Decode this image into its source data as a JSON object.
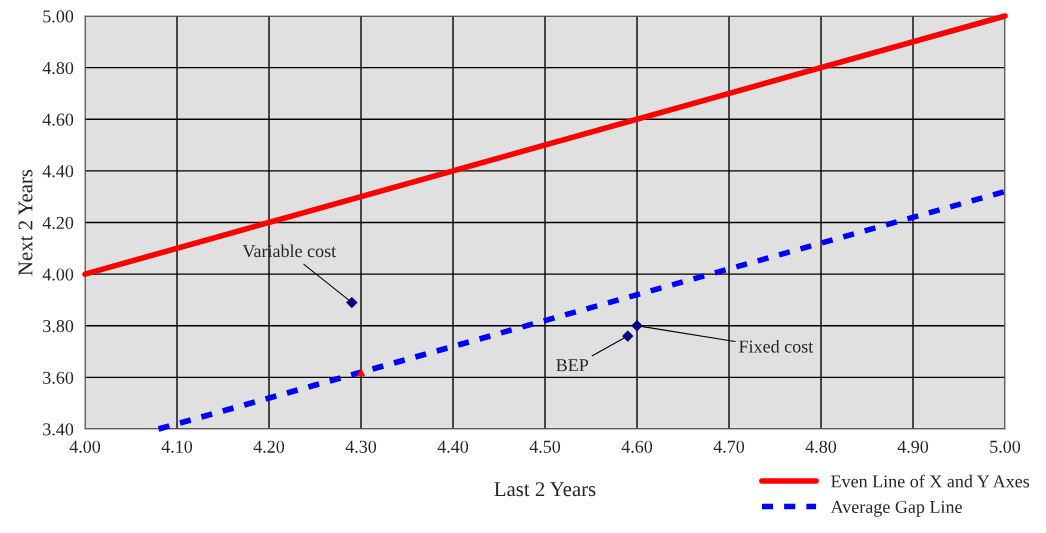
{
  "chart_data": {
    "type": "line",
    "xlabel": "Last 2 Years",
    "ylabel": "Next 2 Years",
    "xlim": [
      4.0,
      5.0
    ],
    "ylim": [
      3.4,
      5.0
    ],
    "xticks": [
      {
        "value": 4.0,
        "label": "4.00"
      },
      {
        "value": 4.1,
        "label": "4.10"
      },
      {
        "value": 4.2,
        "label": "4.20"
      },
      {
        "value": 4.3,
        "label": "4.30"
      },
      {
        "value": 4.4,
        "label": "4.40"
      },
      {
        "value": 4.5,
        "label": "4.50"
      },
      {
        "value": 4.6,
        "label": "4.60"
      },
      {
        "value": 4.7,
        "label": "4.70"
      },
      {
        "value": 4.8,
        "label": "4.80"
      },
      {
        "value": 4.9,
        "label": "4.90"
      },
      {
        "value": 5.0,
        "label": "5.00"
      }
    ],
    "yticks": [
      {
        "value": 3.4,
        "label": "3.40"
      },
      {
        "value": 3.6,
        "label": "3.60"
      },
      {
        "value": 3.8,
        "label": "3.80"
      },
      {
        "value": 4.0,
        "label": "4.00"
      },
      {
        "value": 4.2,
        "label": "4.20"
      },
      {
        "value": 4.4,
        "label": "4.40"
      },
      {
        "value": 4.6,
        "label": "4.60"
      },
      {
        "value": 4.8,
        "label": "4.80"
      },
      {
        "value": 5.0,
        "label": "5.00"
      }
    ],
    "grid": true,
    "legend": "bottom right",
    "series": [
      {
        "name": "Even Line of X and Y Axes",
        "color": "#ff0000",
        "line_style": "solid",
        "marker": "none",
        "x": [
          4.0,
          5.0
        ],
        "values": [
          4.0,
          5.0
        ]
      },
      {
        "name": "Average Gap Line",
        "color": "#0000ff",
        "line_style": "dashed",
        "marker": "none",
        "x": [
          4.08,
          5.0
        ],
        "values": [
          3.4,
          4.32
        ]
      },
      {
        "type": "scatter",
        "color": "#000080",
        "marker": "diamond",
        "x": [
          4.29,
          4.59,
          4.6
        ],
        "values": [
          3.89,
          3.76,
          3.8
        ]
      },
      {
        "type": "scatter",
        "color": "#ff0000",
        "marker": "triangle",
        "x": [
          4.3
        ],
        "values": [
          3.62
        ]
      }
    ],
    "annotations": [
      {
        "text": "Variable cost",
        "x": 4.29,
        "y": 3.89
      },
      {
        "text": "BEP",
        "x": 4.59,
        "y": 3.76
      },
      {
        "text": "Fixed cost",
        "x": 4.6,
        "y": 3.8
      }
    ]
  }
}
